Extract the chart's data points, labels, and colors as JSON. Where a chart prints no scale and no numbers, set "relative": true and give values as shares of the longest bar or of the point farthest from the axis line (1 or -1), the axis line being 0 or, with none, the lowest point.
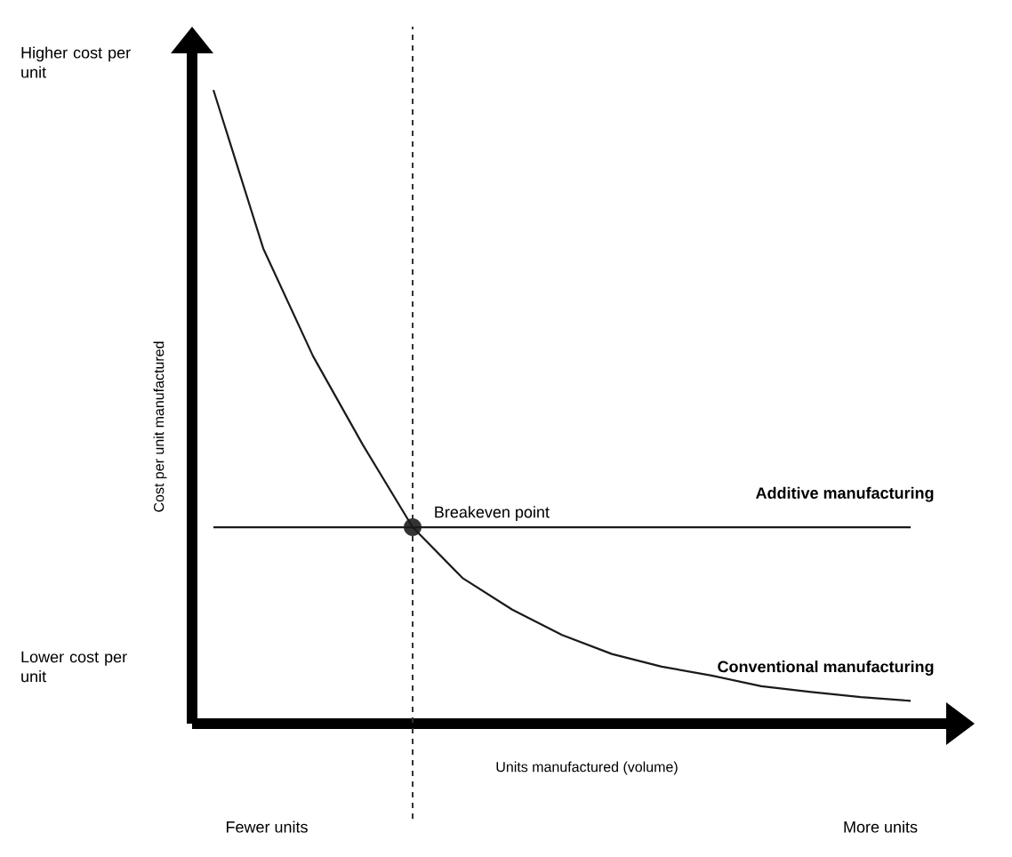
{
  "chart_data": {
    "type": "line",
    "relative": true,
    "xlabel": "Units manufactured (volume)",
    "ylabel": "Cost per unit manufactured",
    "categories": [
      null,
      null,
      null,
      null,
      null,
      null,
      null,
      null,
      null,
      null,
      null,
      null,
      null,
      null,
      null
    ],
    "series": [
      {
        "name": "Conventional manufacturing",
        "color": "#1a1a1a",
        "values": [
          1.0,
          0.75,
          0.58,
          0.44,
          0.31,
          0.23,
          0.18,
          0.14,
          0.11,
          0.09,
          0.076,
          0.059,
          0.05,
          0.042,
          0.036
        ]
      },
      {
        "name": "Additive manufacturing",
        "color": "#1a1a1a",
        "values": [
          0.31,
          0.31,
          0.31,
          0.31,
          0.31,
          0.31,
          0.31,
          0.31,
          0.31,
          0.31,
          0.31,
          0.31,
          0.31,
          0.31,
          0.31
        ]
      }
    ],
    "annotations": [
      "Higher cost per unit",
      "Lower cost per unit",
      "Fewer units",
      "More units",
      "Breakeven point"
    ]
  }
}
